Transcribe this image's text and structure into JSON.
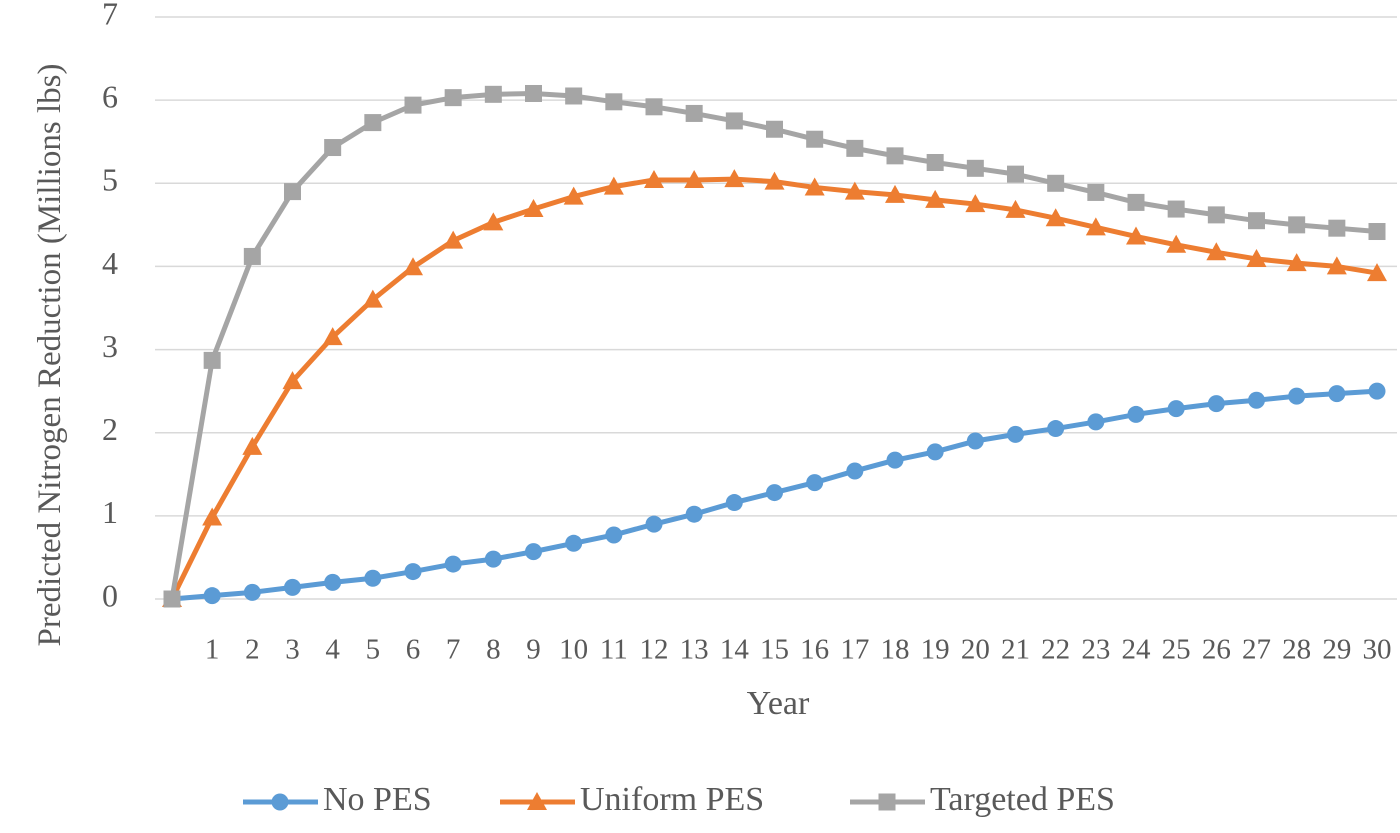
{
  "chart_data": {
    "type": "line",
    "x_label": "Year",
    "y_label": "Predicted Nitrogen Reduction (Millions lbs)",
    "categories": [
      null,
      "1",
      "2",
      "3",
      "4",
      "5",
      "6",
      "7",
      "8",
      "9",
      "10",
      "11",
      "12",
      "13",
      "14",
      "15",
      "16",
      "17",
      "18",
      "19",
      "20",
      "21",
      "22",
      "23",
      "24",
      "25",
      "26",
      "27",
      "28",
      "29",
      "30"
    ],
    "series": [
      {
        "name": "No PES",
        "color": "#5b9bd5",
        "marker": "circle",
        "values": [
          0,
          0.04,
          0.08,
          0.14,
          0.2,
          0.25,
          0.33,
          0.42,
          0.48,
          0.57,
          0.67,
          0.77,
          0.9,
          1.02,
          1.16,
          1.28,
          1.4,
          1.54,
          1.67,
          1.77,
          1.9,
          1.98,
          2.05,
          2.13,
          2.22,
          2.29,
          2.35,
          2.39,
          2.44,
          2.47,
          2.5
        ]
      },
      {
        "name": "Uniform PES",
        "color": "#ed7d31",
        "marker": "triangle",
        "values": [
          0,
          0.98,
          1.83,
          2.62,
          3.15,
          3.6,
          3.99,
          4.31,
          4.53,
          4.69,
          4.84,
          4.96,
          5.04,
          5.04,
          5.05,
          5.02,
          4.95,
          4.9,
          4.86,
          4.8,
          4.75,
          4.68,
          4.58,
          4.47,
          4.36,
          4.26,
          4.17,
          4.09,
          4.04,
          4.0,
          3.92
        ]
      },
      {
        "name": "Targeted PES",
        "color": "#a5a5a5",
        "marker": "square",
        "values": [
          0,
          2.87,
          4.12,
          4.9,
          5.43,
          5.73,
          5.94,
          6.03,
          6.07,
          6.08,
          6.05,
          5.98,
          5.92,
          5.84,
          5.75,
          5.65,
          5.53,
          5.42,
          5.33,
          5.25,
          5.18,
          5.11,
          5.0,
          4.89,
          4.77,
          4.69,
          4.62,
          4.55,
          4.5,
          4.46,
          4.42
        ]
      }
    ],
    "ylim": [
      0,
      7
    ],
    "yticks": [
      0,
      1,
      2,
      3,
      4,
      5,
      6,
      7
    ],
    "grid": true,
    "legend": "bottom"
  }
}
